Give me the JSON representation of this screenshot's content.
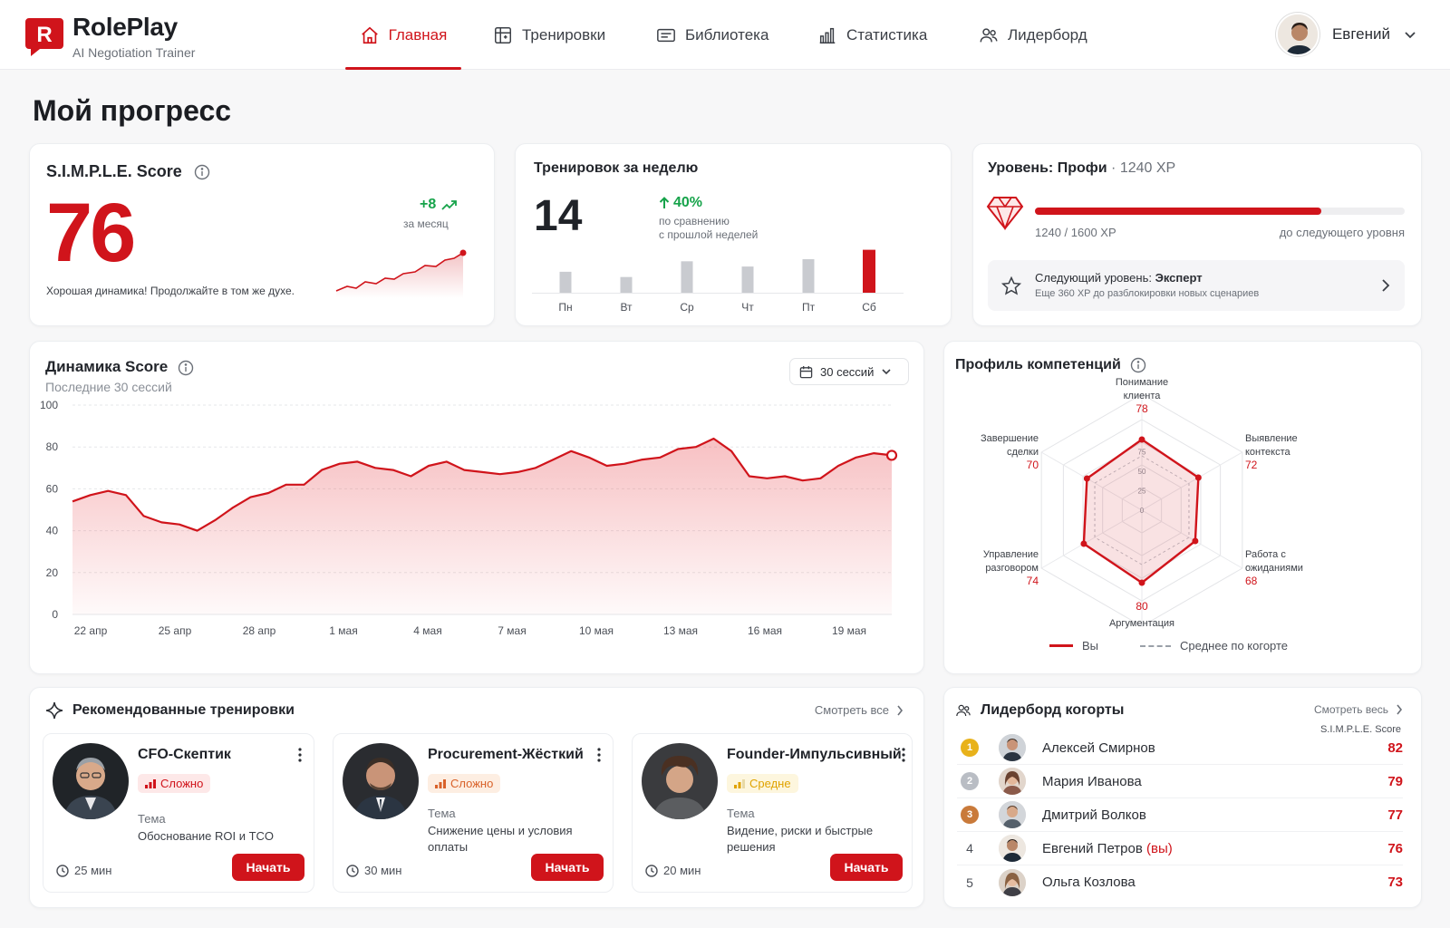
{
  "brand": {
    "name": "RolePlay",
    "subtitle": "AI Negotiation Trainer",
    "logo_letter": "R",
    "accent": "#d0141b"
  },
  "nav": {
    "items": [
      {
        "label": "Главная",
        "icon": "home-icon",
        "active": true
      },
      {
        "label": "Тренировки",
        "icon": "training-icon",
        "active": false
      },
      {
        "label": "Библиотека",
        "icon": "library-icon",
        "active": false
      },
      {
        "label": "Статистика",
        "icon": "stats-icon",
        "active": false
      },
      {
        "label": "Лидерборд",
        "icon": "users-icon",
        "active": false
      }
    ]
  },
  "user": {
    "name": "Евгений"
  },
  "page": {
    "title": "Мой прогресс"
  },
  "score_card": {
    "title": "S.I.M.P.L.E. Score",
    "value": "76",
    "delta": "+8",
    "delta_period": "за месяц",
    "note": "Хорошая динамика! Продолжайте в том же духе."
  },
  "week_card": {
    "title": "Тренировок за неделю",
    "value": "14",
    "change": "40%",
    "change_note_1": "по сравнению",
    "change_note_2": "с прошлой неделей",
    "bars": [
      {
        "day": "Пн",
        "value": 2
      },
      {
        "day": "Вт",
        "value": 1.5
      },
      {
        "day": "Ср",
        "value": 3
      },
      {
        "day": "Чт",
        "value": 2.5
      },
      {
        "day": "Пт",
        "value": 3.2
      },
      {
        "day": "Сб",
        "value": 4.1,
        "highlight": true
      }
    ]
  },
  "level_card": {
    "title": "Уровень: Профи",
    "xp": "1240 XP",
    "progress_text": "1240 / 1600 XP",
    "progress_fraction": 0.775,
    "to_next": "до следующего уровня",
    "next_prefix": "Следующий уровень: ",
    "next_level": "Эксперт",
    "next_note": "Еще 360 XP до разблокировки новых сценариев"
  },
  "dynamics": {
    "title": "Динамика Score",
    "subtitle": "Последние 30 сессий",
    "selector": "30 сессий"
  },
  "chart_data": {
    "type": "area",
    "title": "Динамика Score",
    "ylim": [
      0,
      100
    ],
    "yticks": [
      0,
      20,
      40,
      60,
      80,
      100
    ],
    "xticks": [
      "22 апр",
      "25 апр",
      "28 апр",
      "1 мая",
      "4 мая",
      "7 мая",
      "10 мая",
      "13 мая",
      "16 мая",
      "19 мая"
    ],
    "series": [
      {
        "values": [
          54,
          57,
          59,
          57,
          47,
          44,
          43,
          40,
          45,
          51,
          56,
          58,
          62,
          62,
          69,
          72,
          73,
          70,
          69,
          66,
          71,
          73,
          69,
          68,
          67,
          68,
          70,
          74,
          78,
          75,
          71,
          72,
          74,
          75,
          79,
          80,
          84,
          78,
          66,
          65,
          66,
          64,
          65,
          71,
          75,
          77,
          76
        ]
      }
    ]
  },
  "radar": {
    "title": "Профиль компетенций",
    "rings": [
      "0",
      "25",
      "50",
      "75"
    ],
    "axes": [
      {
        "label_1": "Понимание",
        "label_2": "клиента",
        "value": 78
      },
      {
        "label_1": "Выявление",
        "label_2": "контекста",
        "value": 72
      },
      {
        "label_1": "Работа с",
        "label_2": "ожиданиями",
        "value": 68
      },
      {
        "label_1": "Аргументация",
        "label_2": "",
        "value": 80
      },
      {
        "label_1": "Управление",
        "label_2": "разговором",
        "value": 74
      },
      {
        "label_1": "Завершение",
        "label_2": "сделки",
        "value": 70
      }
    ],
    "legend_you": "Вы",
    "legend_avg": "Среднее по когорте"
  },
  "recommended": {
    "title": "Рекомендованные тренировки",
    "see_all": "Смотреть все",
    "topic_label": "Тема",
    "start_label": "Начать",
    "items": [
      {
        "name": "CFO-Скептик",
        "difficulty": "Сложно",
        "level": "hard",
        "topic": "Обоснование ROI и TCO",
        "time": "25 мин"
      },
      {
        "name": "Procurement-Жёсткий",
        "difficulty": "Сложно",
        "level": "hard2",
        "topic": "Снижение цены и условия оплаты",
        "time": "30 мин"
      },
      {
        "name": "Founder-Импульсивный",
        "difficulty": "Средне",
        "level": "mid",
        "topic": "Видение, риски и быстрые решения",
        "time": "20 мин"
      }
    ]
  },
  "leaderboard": {
    "title": "Лидерборд когорты",
    "see_all": "Смотреть весь",
    "score_label": "S.I.M.P.L.E. Score",
    "you_suffix": "(вы)",
    "rows": [
      {
        "rank": "1",
        "name": "Алексей Смирнов",
        "score": "82",
        "medal": "#e8b21b"
      },
      {
        "rank": "2",
        "name": "Мария Иванова",
        "score": "79",
        "medal": "#b9bdc4"
      },
      {
        "rank": "3",
        "name": "Дмитрий Волков",
        "score": "77",
        "medal": "#c97a3a"
      },
      {
        "rank": "4",
        "name": "Евгений Петров",
        "score": "76",
        "you": true
      },
      {
        "rank": "5",
        "name": "Ольга Козлова",
        "score": "73"
      }
    ]
  }
}
